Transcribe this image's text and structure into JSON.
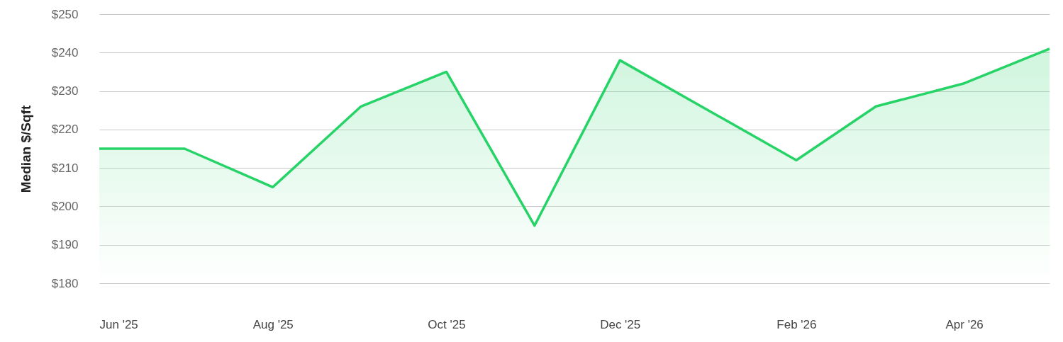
{
  "chart_data": {
    "type": "area",
    "ylabel": "Median $/Sqft",
    "x": [
      "2025-06",
      "2025-07",
      "2025-08",
      "2025-09",
      "2025-10",
      "2025-11",
      "2025-12",
      "2026-01",
      "2026-02",
      "2026-03",
      "2026-04",
      "2026-05"
    ],
    "series": [
      {
        "color": "#26d367",
        "values": [
          215,
          215,
          205,
          226,
          235,
          195,
          238,
          225,
          212,
          226,
          232,
          241
        ]
      }
    ],
    "xlim": [
      "2025-06",
      "2026-05"
    ],
    "xticks": [
      {
        "value": "2025-06",
        "label": "Jun '25"
      },
      {
        "value": "2025-08",
        "label": "Aug '25"
      },
      {
        "value": "2025-10",
        "label": "Oct '25"
      },
      {
        "value": "2025-12",
        "label": "Dec '25"
      },
      {
        "value": "2026-02",
        "label": "Feb '26"
      },
      {
        "value": "2026-04",
        "label": "Apr '26"
      }
    ],
    "ylim": [
      180,
      250
    ],
    "yticks": [
      {
        "value": 180,
        "label": "$180"
      },
      {
        "value": 190,
        "label": "$190"
      },
      {
        "value": 200,
        "label": "$200"
      },
      {
        "value": 210,
        "label": "$210"
      },
      {
        "value": 220,
        "label": "$220"
      },
      {
        "value": 230,
        "label": "$230"
      },
      {
        "value": 240,
        "label": "$240"
      },
      {
        "value": 250,
        "label": "$250"
      }
    ],
    "grid": "y"
  }
}
